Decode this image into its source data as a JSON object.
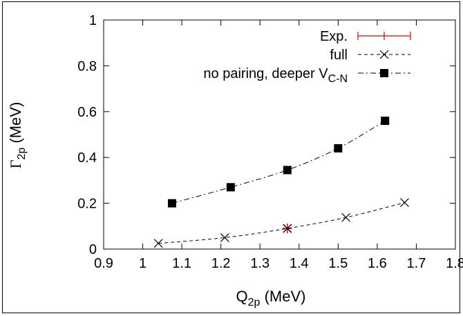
{
  "chart_data": {
    "type": "line",
    "xlabel": "Q",
    "xlabel_sub": "2p",
    "xlabel_unit": " (MeV)",
    "ylabel": "Γ",
    "ylabel_sub": "2p",
    "ylabel_unit": " (MeV)",
    "xlim": [
      0.9,
      1.8
    ],
    "ylim": [
      0,
      1
    ],
    "xticks": [
      "0.9",
      "1",
      "1.1",
      "1.2",
      "1.3",
      "1.4",
      "1.5",
      "1.6",
      "1.7",
      "1.8"
    ],
    "yticks": [
      "0",
      "0.2",
      "0.4",
      "0.6",
      "0.8",
      "1"
    ],
    "grid": false,
    "legend_position": "top-right",
    "series": [
      {
        "name": "Exp.",
        "legend_label": "Exp.",
        "color": "#e00000",
        "style": "errorbar-point",
        "x": [
          1.37
        ],
        "y": [
          0.09
        ]
      },
      {
        "name": "full",
        "legend_label": "full",
        "color": "#000000",
        "style": "dashed",
        "marker": "x",
        "x": [
          1.04,
          1.21,
          1.37,
          1.52,
          1.67
        ],
        "y": [
          0.025,
          0.05,
          0.09,
          0.138,
          0.203
        ]
      },
      {
        "name": "no pairing, deeper V_C-N",
        "legend_label": "no pairing, deeper V",
        "legend_sub": "C-N",
        "color": "#000000",
        "style": "dashdot",
        "marker": "square",
        "x": [
          1.075,
          1.225,
          1.37,
          1.5,
          1.62
        ],
        "y": [
          0.2,
          0.27,
          0.345,
          0.44,
          0.56
        ]
      }
    ]
  }
}
